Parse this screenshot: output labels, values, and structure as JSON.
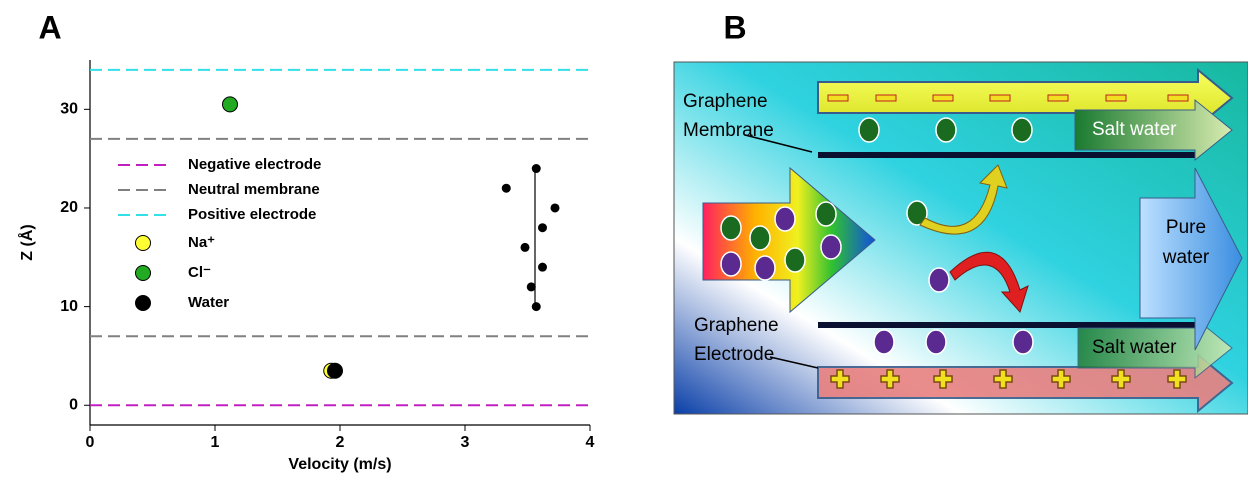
{
  "chart_data": {
    "type": "scatter",
    "label": "A",
    "x_label": "Velocity (m/s)",
    "y_label": "Z (Å)",
    "xlim": [
      0,
      4
    ],
    "ylim": [
      -2,
      35
    ],
    "xticks": [
      0,
      1,
      2,
      3,
      4
    ],
    "yticks": [
      0,
      10,
      20,
      30
    ],
    "lines": [
      {
        "name": "Negative electrode",
        "color": "#c020c0",
        "values": [
          0
        ]
      },
      {
        "name": "Neutral membrane",
        "color": "#808080",
        "values": [
          7,
          27
        ]
      },
      {
        "name": "Positive electrode",
        "color": "#33e0e8",
        "values": [
          34
        ]
      }
    ],
    "series": [
      {
        "name": "Na⁺",
        "color": "#ffff33",
        "x": [
          1.93
        ],
        "values": [
          3.5
        ]
      },
      {
        "name": "Cl⁻",
        "color": "#22aa22",
        "x": [
          1.12
        ],
        "values": [
          30.5
        ]
      },
      {
        "name": "Water",
        "color": "#000000",
        "x": [
          1.96,
          3.33,
          3.57,
          3.72,
          3.62,
          3.48,
          3.62,
          3.53,
          3.57
        ],
        "values": [
          3.5,
          22,
          24,
          20,
          18,
          16,
          14,
          12,
          10
        ]
      }
    ]
  },
  "diagram": {
    "label": "B",
    "membrane_label": [
      "Graphene",
      "Membrane"
    ],
    "electrode_label": [
      "Graphene",
      "Electrode"
    ],
    "salt_water_top": "Salt water",
    "salt_water_bottom": "Salt water",
    "pure_water": [
      "Pure",
      "water"
    ]
  }
}
